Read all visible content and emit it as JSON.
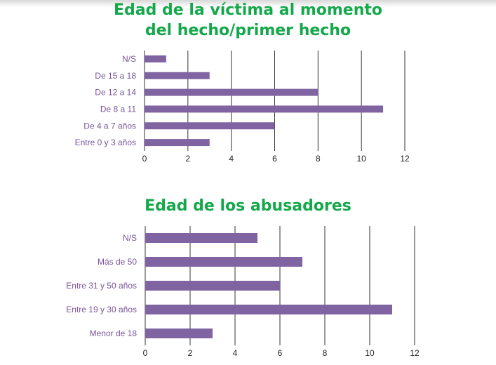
{
  "chart_data": [
    {
      "type": "bar",
      "orientation": "horizontal",
      "title_lines": [
        "Edad de la víctima al momento",
        "del hecho/primer hecho"
      ],
      "categories": [
        "N/S",
        "De 15 a 18",
        "De 12 a 14",
        "De 8 a 11",
        "De 4 a 7 años",
        "Entre 0 y 3 años"
      ],
      "values": [
        1,
        3,
        8,
        11,
        6,
        3
      ],
      "xlim": [
        0,
        12
      ],
      "xticks": [
        "0",
        "2",
        "4",
        "6",
        "8",
        "10",
        "12"
      ],
      "grid": "vertical",
      "legend": "none",
      "colors": {
        "bar": "#8064a2",
        "category_label": "#7a559c",
        "title": "#14a84a"
      }
    },
    {
      "type": "bar",
      "orientation": "horizontal",
      "title_lines": [
        "Edad de los abusadores"
      ],
      "categories": [
        "N/S",
        "Más de 50",
        "Entre 31 y 50 años",
        "Entre 19 y 30 años",
        "Menor de 18"
      ],
      "values": [
        5,
        7,
        6,
        11,
        3
      ],
      "xlim": [
        0,
        12
      ],
      "xticks": [
        "0",
        "2",
        "4",
        "6",
        "8",
        "10",
        "12"
      ],
      "grid": "vertical",
      "legend": "none",
      "colors": {
        "bar": "#8064a2",
        "category_label": "#7a559c",
        "title": "#14a84a"
      }
    }
  ]
}
